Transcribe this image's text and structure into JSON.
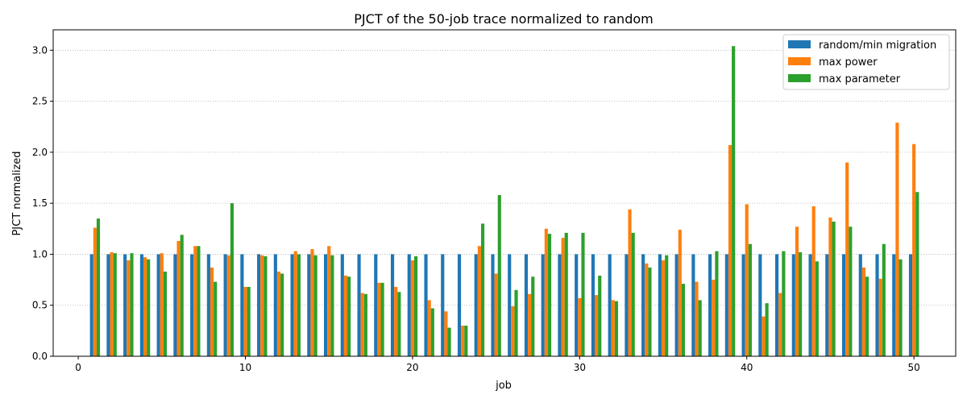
{
  "chart_data": {
    "type": "bar",
    "title": "PJCT of the 50-job trace normalized to random",
    "xlabel": "job",
    "ylabel": "PJCT normalized",
    "xlim": [
      -1.5,
      52.5
    ],
    "ylim": [
      0,
      3.2
    ],
    "xticks": [
      0,
      10,
      20,
      30,
      40,
      50
    ],
    "xtick_labels": [
      "0",
      "10",
      "20",
      "30",
      "40",
      "50"
    ],
    "yticks": [
      0.0,
      0.5,
      1.0,
      1.5,
      2.0,
      2.5,
      3.0
    ],
    "ytick_labels": [
      "0.0",
      "0.5",
      "1.0",
      "1.5",
      "2.0",
      "2.5",
      "3.0"
    ],
    "grid": "y-dotted",
    "legend_position": "top-right",
    "x": [
      1,
      2,
      3,
      4,
      5,
      6,
      7,
      8,
      9,
      10,
      11,
      12,
      13,
      14,
      15,
      16,
      17,
      18,
      19,
      20,
      21,
      22,
      23,
      24,
      25,
      26,
      27,
      28,
      29,
      30,
      31,
      32,
      33,
      34,
      35,
      36,
      37,
      38,
      39,
      40,
      41,
      42,
      43,
      44,
      45,
      46,
      47,
      48,
      49,
      50
    ],
    "series": [
      {
        "name": "random/min migration",
        "color": "#1f77b4",
        "values": [
          1,
          1,
          1,
          1,
          1,
          1,
          1,
          1,
          1,
          1,
          1,
          1,
          1,
          1,
          1,
          1,
          1,
          1,
          1,
          1,
          1,
          1,
          1,
          1,
          1,
          1,
          1,
          1,
          1,
          1,
          1,
          1,
          1,
          1,
          1,
          1,
          1,
          1,
          1,
          1,
          1,
          1,
          1,
          1,
          1,
          1,
          1,
          1,
          1,
          1
        ]
      },
      {
        "name": "max power",
        "color": "#ff7f0e",
        "values": [
          1.26,
          1.02,
          0.94,
          0.97,
          1.01,
          1.13,
          1.08,
          0.87,
          0.99,
          0.68,
          0.99,
          0.83,
          1.03,
          1.05,
          1.08,
          0.79,
          0.62,
          0.72,
          0.68,
          0.94,
          0.55,
          0.44,
          0.3,
          1.08,
          0.81,
          0.49,
          0.61,
          1.25,
          1.16,
          0.57,
          0.6,
          0.55,
          1.44,
          0.91,
          0.94,
          1.24,
          0.73,
          0.75,
          2.07,
          1.49,
          0.39,
          0.62,
          1.27,
          1.47,
          1.36,
          1.9,
          0.87,
          0.76,
          2.29,
          2.08
        ]
      },
      {
        "name": "max parameter",
        "color": "#2ca02c",
        "values": [
          1.35,
          1.01,
          1.01,
          0.95,
          0.83,
          1.19,
          1.08,
          0.73,
          1.5,
          0.68,
          0.98,
          0.81,
          1.0,
          0.99,
          0.99,
          0.78,
          0.61,
          0.72,
          0.63,
          0.98,
          0.47,
          0.28,
          0.3,
          1.3,
          1.58,
          0.65,
          0.78,
          1.2,
          1.21,
          1.21,
          0.79,
          0.54,
          1.21,
          0.87,
          0.99,
          0.71,
          0.55,
          1.03,
          3.04,
          1.1,
          0.52,
          1.03,
          1.02,
          0.93,
          1.32,
          1.27,
          0.78,
          1.1,
          0.95,
          1.61
        ]
      }
    ]
  }
}
